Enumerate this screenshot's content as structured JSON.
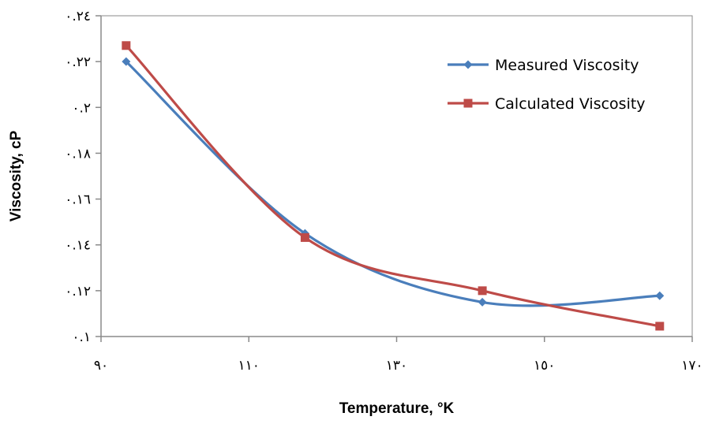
{
  "chart_data": {
    "type": "line",
    "xlabel": "Temperature, °K",
    "ylabel": "Viscosity, cP",
    "xlim": [
      90,
      170
    ],
    "ylim": [
      0.1,
      0.24
    ],
    "x_ticks": [
      {
        "value": 90,
        "label": "٩٠"
      },
      {
        "value": 110,
        "label": "١١٠"
      },
      {
        "value": 130,
        "label": "١٣٠"
      },
      {
        "value": 150,
        "label": "١٥٠"
      },
      {
        "value": 170,
        "label": "١٧٠"
      }
    ],
    "y_ticks": [
      {
        "value": 0.1,
        "label": "٠.١"
      },
      {
        "value": 0.12,
        "label": "٠.١٢"
      },
      {
        "value": 0.14,
        "label": "٠.١٤"
      },
      {
        "value": 0.16,
        "label": "٠.١٦"
      },
      {
        "value": 0.18,
        "label": "٠.١٨"
      },
      {
        "value": 0.2,
        "label": "٠.٢"
      },
      {
        "value": 0.22,
        "label": "٠.٢٢"
      },
      {
        "value": 0.24,
        "label": "٠.٢٤"
      }
    ],
    "grid": false,
    "legend_position": "top-right",
    "series": [
      {
        "name": "Measured Viscosity",
        "color": "#4a7ebb",
        "marker": "diamond",
        "smooth": true,
        "x": [
          93.4,
          117.6,
          141.6,
          165.6
        ],
        "y": [
          0.22,
          0.145,
          0.115,
          0.1178
        ]
      },
      {
        "name": "Calculated Viscosity",
        "color": "#be4b48",
        "marker": "square",
        "smooth": true,
        "x": [
          93.4,
          117.6,
          141.6,
          165.6
        ],
        "y": [
          0.227,
          0.1432,
          0.12,
          0.1045
        ]
      }
    ]
  }
}
